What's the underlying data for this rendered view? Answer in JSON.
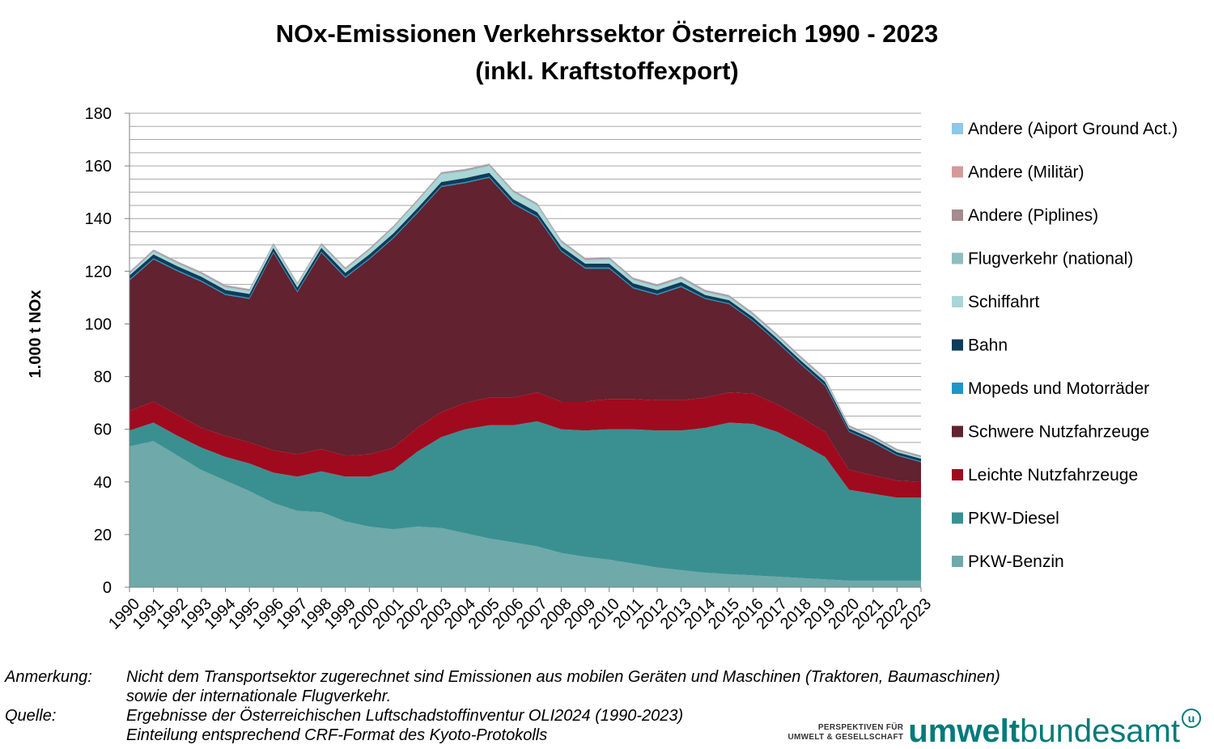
{
  "chart_data": {
    "type": "area",
    "stacked": true,
    "title_line1": "NOx-Emissionen Verkehrssektor Österreich 1990 - 2023",
    "title_line2": "(inkl. Kraftstoffexport)",
    "ylabel": "1.000 t NOx",
    "xlabel": "",
    "ylim": [
      0,
      180
    ],
    "yticks": [
      0,
      20,
      40,
      60,
      80,
      100,
      120,
      140,
      160,
      180
    ],
    "grid": true,
    "legend_position": "right",
    "categories": [
      "1990",
      "1991",
      "1992",
      "1993",
      "1994",
      "1995",
      "1996",
      "1997",
      "1998",
      "1999",
      "2000",
      "2001",
      "2002",
      "2003",
      "2004",
      "2005",
      "2006",
      "2007",
      "2008",
      "2009",
      "2010",
      "2011",
      "2012",
      "2013",
      "2014",
      "2015",
      "2016",
      "2017",
      "2018",
      "2019",
      "2020",
      "2021",
      "2022",
      "2023"
    ],
    "series": [
      {
        "name": "PKW-Benzin",
        "color": "#6fa9aa",
        "values": [
          53.5,
          55.5,
          50,
          44.5,
          40.5,
          36.5,
          32,
          29,
          28.5,
          25,
          23,
          22,
          23,
          22.5,
          20.5,
          18.5,
          17,
          15.5,
          13,
          11.5,
          10.5,
          9,
          7.5,
          6.5,
          5.5,
          5,
          4.5,
          4,
          3.5,
          3,
          2.5,
          2.5,
          2.5,
          2.5
        ]
      },
      {
        "name": "PKW-Diesel",
        "color": "#3a9090",
        "values": [
          6,
          7,
          7.5,
          8.5,
          9,
          10.5,
          11.5,
          13,
          15.5,
          17,
          19,
          22.5,
          28.5,
          34.5,
          39.5,
          43,
          44.5,
          47.5,
          47,
          48,
          49.5,
          51,
          52,
          53,
          55,
          57.5,
          57.5,
          55,
          51,
          46.5,
          34.5,
          33,
          31.5,
          31.5
        ]
      },
      {
        "name": "Leichte Nutzfahrzeuge",
        "color": "#a00a1e",
        "values": [
          7.5,
          8,
          8,
          7.5,
          8,
          8,
          8.5,
          8.5,
          8.5,
          8,
          8.5,
          8.5,
          9,
          9.5,
          10,
          10.5,
          10.5,
          11,
          10.5,
          11,
          11.5,
          11.5,
          11.5,
          11.5,
          11.5,
          11.5,
          11.5,
          10.5,
          10,
          9.5,
          7.5,
          7,
          6.5,
          6
        ]
      },
      {
        "name": "Schwere Nutzfahrzeuge",
        "color": "#62222f",
        "values": [
          49.5,
          54,
          54.5,
          55.5,
          53.5,
          54.5,
          75,
          61.5,
          74.5,
          67.5,
          74,
          79.5,
          81.5,
          85.5,
          83.5,
          83.5,
          73.5,
          66.5,
          57,
          50.5,
          49.5,
          42,
          40,
          43,
          37.5,
          33.5,
          27.5,
          23.5,
          20,
          17.5,
          14.5,
          12.5,
          9.5,
          7.5
        ]
      },
      {
        "name": "Mopeds und Motorräder",
        "color": "#1e96c8",
        "values": [
          0.4,
          0.4,
          0.4,
          0.4,
          0.4,
          0.4,
          0.4,
          0.4,
          0.4,
          0.4,
          0.4,
          0.4,
          0.4,
          0.4,
          0.4,
          0.4,
          0.4,
          0.4,
          0.4,
          0.4,
          0.4,
          0.4,
          0.4,
          0.4,
          0.3,
          0.3,
          0.3,
          0.3,
          0.3,
          0.3,
          0.3,
          0.3,
          0.3,
          0.3
        ]
      },
      {
        "name": "Bahn",
        "color": "#0f3c5a",
        "values": [
          1.5,
          1.5,
          1.5,
          1.5,
          1.5,
          1.5,
          1.5,
          1.5,
          1.5,
          1.5,
          1.5,
          1.5,
          1.5,
          1.5,
          1.5,
          1.5,
          1.5,
          1.5,
          1.5,
          1.5,
          1.5,
          1.5,
          1.5,
          1.5,
          1.2,
          1.2,
          1.2,
          1.2,
          1.2,
          1.2,
          1,
          1,
          1,
          1
        ]
      },
      {
        "name": "Schiffahrt",
        "color": "#a9d6d6",
        "values": [
          0.6,
          1,
          1,
          1,
          1,
          1,
          1,
          1,
          1,
          1.2,
          1.5,
          2,
          2.5,
          2.8,
          2.5,
          2.5,
          2.5,
          2.5,
          1.5,
          1.2,
          1.5,
          1.2,
          1.2,
          1.2,
          1,
          1,
          0.8,
          0.8,
          0.7,
          0.7,
          0.5,
          0.5,
          0.5,
          0.5
        ]
      },
      {
        "name": "Flugverkehr (national)",
        "color": "#8fbfbf",
        "values": [
          0.3,
          0.3,
          0.3,
          0.3,
          0.3,
          0.3,
          0.3,
          0.3,
          0.3,
          0.3,
          0.3,
          0.3,
          0.3,
          0.4,
          0.4,
          0.4,
          0.4,
          0.4,
          0.4,
          0.4,
          0.4,
          0.4,
          0.4,
          0.4,
          0.4,
          0.4,
          0.4,
          0.4,
          0.4,
          0.4,
          0.2,
          0.2,
          0.2,
          0.2
        ]
      },
      {
        "name": "Andere (Piplines)",
        "color": "#a58a8f",
        "values": [
          0.3,
          0.3,
          0.3,
          0.3,
          0.3,
          0.3,
          0.3,
          0.3,
          0.3,
          0.3,
          0.3,
          0.3,
          0.3,
          0.3,
          0.3,
          0.3,
          0.3,
          0.3,
          0.3,
          0.3,
          0.3,
          0.3,
          0.3,
          0.3,
          0.3,
          0.3,
          0.3,
          0.3,
          0.3,
          0.3,
          0.3,
          0.3,
          0.3,
          0.3
        ]
      },
      {
        "name": "Andere (Militär)",
        "color": "#d59a98",
        "values": [
          0.2,
          0.2,
          0.2,
          0.2,
          0.2,
          0.2,
          0.2,
          0.2,
          0.2,
          0.2,
          0.2,
          0.2,
          0.2,
          0.2,
          0.2,
          0.2,
          0.2,
          0.2,
          0.2,
          0.2,
          0.2,
          0.2,
          0.2,
          0.2,
          0.2,
          0.2,
          0.2,
          0.2,
          0.2,
          0.2,
          0.2,
          0.2,
          0.2,
          0.2
        ]
      },
      {
        "name": "Andere (Aiport Ground Act.)",
        "color": "#8cc8e8",
        "values": [
          0.1,
          0.1,
          0.1,
          0.1,
          0.1,
          0.1,
          0.1,
          0.1,
          0.1,
          0.1,
          0.1,
          0.1,
          0.1,
          0.1,
          0.1,
          0.1,
          0.1,
          0.1,
          0.1,
          0.1,
          0.1,
          0.1,
          0.1,
          0.1,
          0.1,
          0.1,
          0.1,
          0.1,
          0.1,
          0.1,
          0.1,
          0.1,
          0.1,
          0.1
        ]
      }
    ]
  },
  "notes": {
    "remark_label": "Anmerkung:",
    "remark_line1": "Nicht dem Transportsektor zugerechnet sind Emissionen aus mobilen Geräten und Maschinen (Traktoren, Baumaschinen)",
    "remark_line2": "sowie der internationale Flugverkehr.",
    "source_label": "Quelle:",
    "source_line1": "Ergebnisse der Österreichischen Luftschadstoffinventur OLI2024 (1990-2023)",
    "source_line2": "Einteilung entsprechend CRF-Format des Kyoto-Protokolls"
  },
  "logo": {
    "tagline_line1": "PERSPEKTIVEN FÜR",
    "tagline_line2": "UMWELT & GESELLSCHAFT",
    "word_bold": "umwelt",
    "word_regular": "bundesamt",
    "badge": "u"
  }
}
